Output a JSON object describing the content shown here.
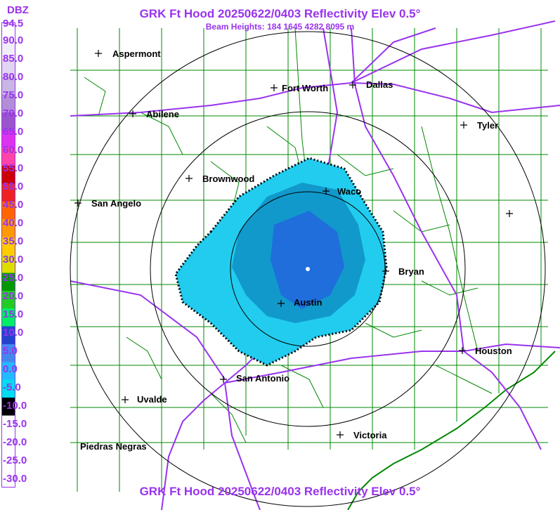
{
  "header": {
    "title": "GRK Ft Hood 20250622/0403 Reflectivity Elev 0.5°",
    "beam_heights": "Beam Heights: 184 1645 4282 8095 m",
    "footer_title": "GRK Ft Hood 20250622/0403 Reflectivity Elev 0.5°"
  },
  "legend": {
    "unit": "DBZ",
    "levels": [
      "94.5",
      "90.0",
      "85.0",
      "80.0",
      "75.0",
      "70.0",
      "65.0",
      "60.0",
      "55.0",
      "50.0",
      "45.0",
      "40.0",
      "35.0",
      "30.0",
      "25.0",
      "20.0",
      "15.0",
      "10.0",
      "5.0",
      "0.0",
      "-5.0",
      "-10.0",
      "-15.0",
      "-20.0",
      "-25.0",
      "-30.0"
    ],
    "colors": [
      "#ffffff",
      "#f2eef8",
      "#e0d6ef",
      "#c9b6e4",
      "#b38ed8",
      "#9a55cc",
      "#dd33ee",
      "#ff44aa",
      "#cc0000",
      "#ee2222",
      "#ff6600",
      "#ff9900",
      "#ffcc00",
      "#dddd00",
      "#009900",
      "#22cc22",
      "#00ee66",
      "#2244cc",
      "#4488ee",
      "#22bbff",
      "#00ddee",
      "#000000",
      "#ffffff",
      "#ffffff",
      "#ffffff",
      "#ffffff"
    ]
  },
  "cities": [
    {
      "name": "Aspermont"
    },
    {
      "name": "Fort Worth"
    },
    {
      "name": "Dallas"
    },
    {
      "name": "Abilene"
    },
    {
      "name": "Tyler"
    },
    {
      "name": "Brownwood"
    },
    {
      "name": "Waco"
    },
    {
      "name": "San Angelo"
    },
    {
      "name": "Bryan"
    },
    {
      "name": "Austin"
    },
    {
      "name": "Houston"
    },
    {
      "name": "San Antonio"
    },
    {
      "name": "Uvalde"
    },
    {
      "name": "Victoria"
    },
    {
      "name": "Piedras Negras"
    }
  ],
  "colors": {
    "title": "#9933ee",
    "roads": "#9933ee",
    "county_lines": "#008800",
    "range_rings": "#000000",
    "echo_light": "#22ccee",
    "echo_mid": "#1199cc",
    "echo_core": "#2266dd"
  }
}
